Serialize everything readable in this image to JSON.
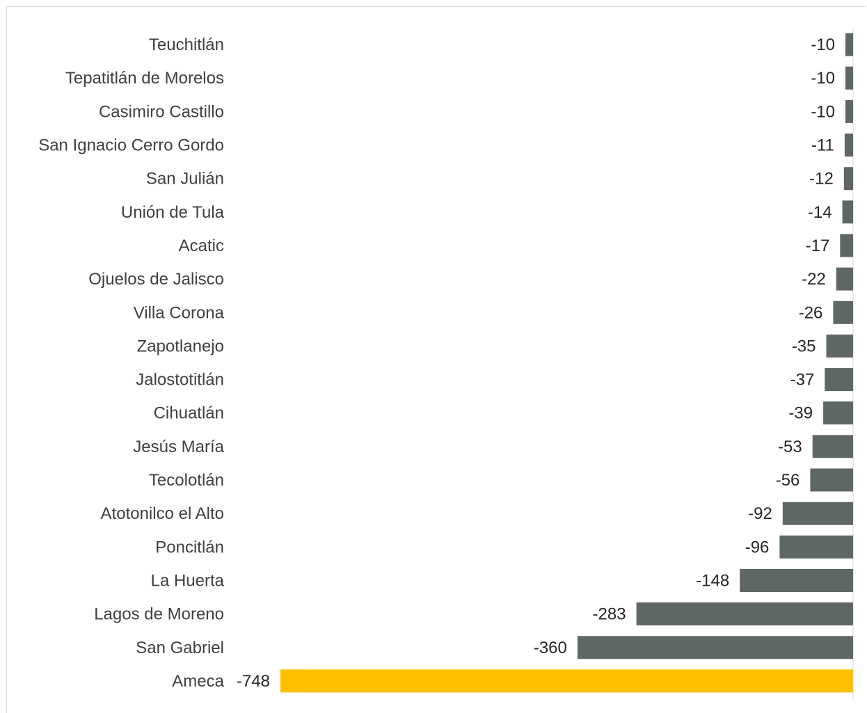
{
  "chart_data": {
    "type": "bar",
    "orientation": "horizontal",
    "categories": [
      "Teuchitlán",
      "Tepatitlán de Morelos",
      "Casimiro Castillo",
      "San Ignacio Cerro Gordo",
      "San Julián",
      "Unión de Tula",
      "Acatic",
      "Ojuelos de Jalisco",
      "Villa Corona",
      "Zapotlanejo",
      "Jalostotitlán",
      "Cihuatlán",
      "Jesús María",
      "Tecolotlán",
      "Atotonilco el Alto",
      "Poncitlán",
      "La Huerta",
      "Lagos de Moreno",
      "San Gabriel",
      "Ameca"
    ],
    "values": [
      -10,
      -10,
      -10,
      -11,
      -12,
      -14,
      -17,
      -22,
      -26,
      -35,
      -37,
      -39,
      -53,
      -56,
      -92,
      -96,
      -148,
      -283,
      -360,
      -748
    ],
    "value_labels": [
      "-10",
      "-10",
      "-10",
      "-11",
      "-12",
      "-14",
      "-17",
      "-22",
      "-26",
      "-35",
      "-37",
      "-39",
      "-53",
      "-56",
      "-92",
      "-96",
      "-148",
      "-283",
      "-360",
      "-748"
    ],
    "highlight_category": "Ameca",
    "colors": {
      "bar": "#5f6766",
      "highlight": "#ffc000",
      "axis": "#d9d9d9"
    },
    "xlim": [
      -748,
      0
    ],
    "grid": false,
    "legend": "none",
    "title": "",
    "xlabel": "",
    "ylabel": ""
  }
}
